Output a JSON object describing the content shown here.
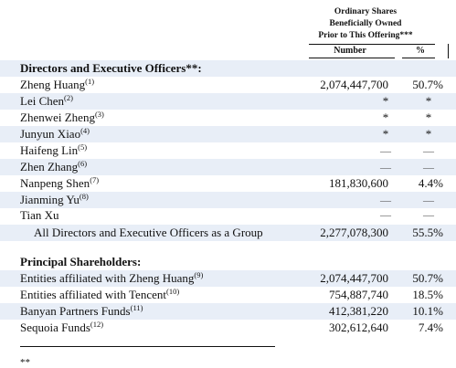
{
  "header": {
    "line1": "Ordinary Shares",
    "line2": "Beneficially Owned",
    "line3": "Prior to This Offering***",
    "col_number": "Number",
    "col_percent": "%"
  },
  "directors": {
    "heading": "Directors and Executive Officers**:",
    "rows": [
      {
        "name": "Zheng Huang",
        "note": "(1)",
        "number": "2,074,447,700",
        "percent": "50.7%"
      },
      {
        "name": "Lei Chen",
        "note": "(2)",
        "number": "*",
        "percent": "*"
      },
      {
        "name": "Zhenwei Zheng",
        "note": "(3)",
        "number": "*",
        "percent": "*"
      },
      {
        "name": "Junyun Xiao",
        "note": "(4)",
        "number": "*",
        "percent": "*"
      },
      {
        "name": "Haifeng Lin",
        "note": "(5)",
        "number": "—",
        "percent": "—"
      },
      {
        "name": "Zhen Zhang",
        "note": "(6)",
        "number": "—",
        "percent": "—"
      },
      {
        "name": "Nanpeng Shen",
        "note": "(7)",
        "number": "181,830,600",
        "percent": "4.4%"
      },
      {
        "name": "Jianming Yu",
        "note": "(8)",
        "number": "—",
        "percent": "—"
      },
      {
        "name": "Tian Xu",
        "note": "",
        "number": "—",
        "percent": "—"
      }
    ],
    "group": {
      "name": "All Directors and Executive Officers as a Group",
      "number": "2,277,078,300",
      "percent": "55.5%"
    }
  },
  "principal": {
    "heading": "Principal Shareholders:",
    "rows": [
      {
        "name": "Entities affiliated with Zheng Huang",
        "note": "(9)",
        "number": "2,074,447,700",
        "percent": "50.7%"
      },
      {
        "name": "Entities affiliated with Tencent",
        "note": "(10)",
        "number": "754,887,740",
        "percent": "18.5%"
      },
      {
        "name": "Banyan Partners Funds",
        "note": "(11)",
        "number": "412,381,220",
        "percent": "10.1%"
      },
      {
        "name": "Sequoia Funds",
        "note": "(12)",
        "number": "302,612,640",
        "percent": "7.4%"
      }
    ]
  },
  "footnote_marker": "**"
}
